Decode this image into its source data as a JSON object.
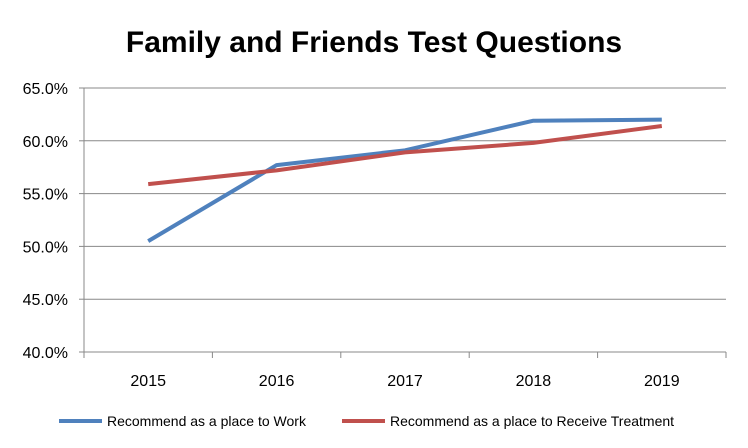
{
  "chart_data": {
    "type": "line",
    "title": "Family and Friends Test Questions",
    "xlabel": "",
    "ylabel": "",
    "categories": [
      "2015",
      "2016",
      "2017",
      "2018",
      "2019"
    ],
    "ylim": [
      40.0,
      65.0
    ],
    "yticks": [
      40.0,
      45.0,
      50.0,
      55.0,
      60.0,
      65.0
    ],
    "ytick_labels": [
      "40.0%",
      "45.0%",
      "50.0%",
      "55.0%",
      "60.0%",
      "65.0%"
    ],
    "grid": true,
    "legend_position": "bottom",
    "series": [
      {
        "name": "Recommend as a place to Work",
        "color": "#4F81BD",
        "values": [
          50.5,
          57.7,
          59.1,
          61.9,
          62.0
        ]
      },
      {
        "name": "Recommend as a place to Receive Treatment",
        "color": "#C0504D",
        "values": [
          55.9,
          57.2,
          58.9,
          59.8,
          61.4
        ]
      }
    ]
  }
}
